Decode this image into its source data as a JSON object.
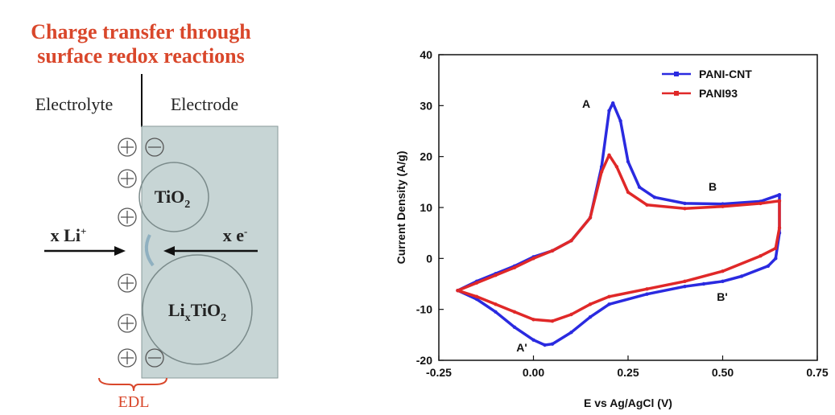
{
  "diagram": {
    "title": [
      "Charge transfer through",
      "surface redox reactions"
    ],
    "electrolyte": "Electrolyte",
    "electrode": "Electrode",
    "tio2": [
      "TiO",
      "2"
    ],
    "lixtio2": [
      "Li",
      "x",
      "TiO",
      "2"
    ],
    "li_ion": [
      "x Li",
      "+"
    ],
    "electron": [
      "x e",
      "-"
    ],
    "edl": "EDL"
  },
  "chart_data": {
    "type": "line",
    "x_label": "E vs Ag/AgCl (V)",
    "y_label": "Current Density (A/g)",
    "xlim": [
      -0.25,
      0.75
    ],
    "ylim": [
      -20,
      40
    ],
    "xticks": [
      -0.25,
      {
        "value": 0,
        "label": "0.00"
      },
      0.25,
      {
        "value": 0.5,
        "label": "0.50"
      },
      0.75
    ],
    "yticks": [
      -20,
      -10,
      0,
      10,
      20,
      30,
      40
    ],
    "legend": "top-right",
    "annotations": [
      "A",
      "B",
      "B'",
      "A'"
    ],
    "series": [
      {
        "name": "PANI-CNT",
        "color": "#2a2ae0",
        "x": [
          -0.2,
          -0.15,
          -0.1,
          -0.05,
          0,
          0.05,
          0.1,
          0.15,
          0.18,
          0.2,
          0.21,
          0.23,
          0.25,
          0.28,
          0.32,
          0.4,
          0.5,
          0.6,
          0.65,
          0.65,
          0.64,
          0.62,
          0.55,
          0.5,
          0.45,
          0.4,
          0.3,
          0.2,
          0.15,
          0.1,
          0.05,
          0.03,
          0,
          -0.05,
          -0.1,
          -0.15,
          -0.2
        ],
        "values": [
          -6.3,
          -4.5,
          -3,
          -1.5,
          0.3,
          1.5,
          3.5,
          8,
          18,
          29,
          30.5,
          27,
          19,
          14,
          12,
          10.8,
          10.7,
          11.2,
          12.5,
          5,
          0,
          -1.5,
          -3.5,
          -4.5,
          -5,
          -5.5,
          -7,
          -9,
          -11.5,
          -14.5,
          -16.8,
          -17,
          -16,
          -13.5,
          -10.5,
          -8,
          -6.3
        ]
      },
      {
        "name": "PANI93",
        "color": "#e02828",
        "x": [
          -0.2,
          -0.15,
          -0.1,
          -0.05,
          0,
          0.05,
          0.1,
          0.15,
          0.18,
          0.2,
          0.22,
          0.25,
          0.3,
          0.4,
          0.5,
          0.6,
          0.65,
          0.65,
          0.64,
          0.6,
          0.5,
          0.4,
          0.3,
          0.2,
          0.15,
          0.1,
          0.05,
          0,
          -0.05,
          -0.1,
          -0.15,
          -0.2
        ],
        "values": [
          -6.3,
          -4.8,
          -3.3,
          -1.8,
          0,
          1.5,
          3.5,
          8,
          17,
          20.3,
          18,
          13,
          10.5,
          9.8,
          10.2,
          10.8,
          11.3,
          6,
          2,
          0.5,
          -2.5,
          -4.5,
          -6,
          -7.5,
          -9,
          -11,
          -12.3,
          -12,
          -10.5,
          -9,
          -7.5,
          -6.3
        ]
      }
    ]
  }
}
